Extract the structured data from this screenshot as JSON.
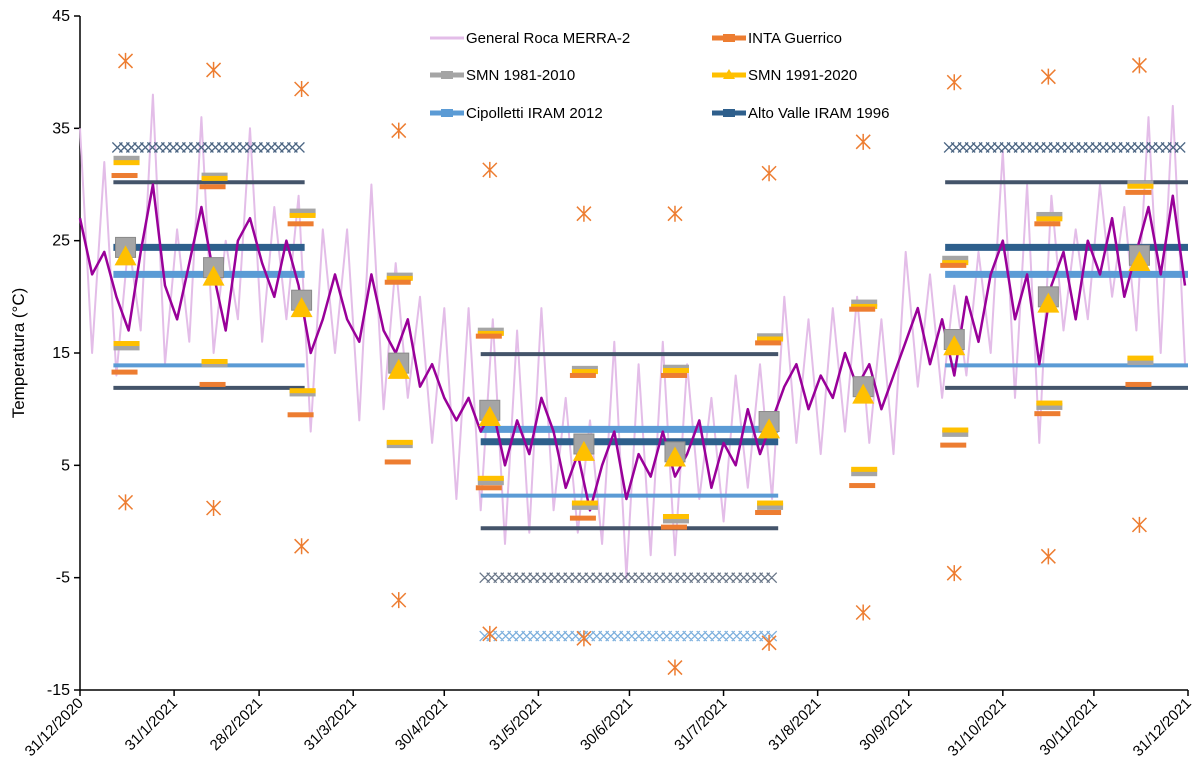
{
  "chart_data": {
    "type": "line",
    "y_label": "Temperatura (°C)",
    "ylim": [
      -15,
      45
    ],
    "yticks": [
      -15,
      -5,
      5,
      15,
      25,
      35,
      45
    ],
    "xlim": [
      0,
      365
    ],
    "xticks": [
      {
        "value": 0,
        "label": "31/12/2020"
      },
      {
        "value": 31,
        "label": "31/1/2021"
      },
      {
        "value": 59,
        "label": "28/2/2021"
      },
      {
        "value": 90,
        "label": "31/3/2021"
      },
      {
        "value": 120,
        "label": "30/4/2021"
      },
      {
        "value": 151,
        "label": "31/5/2021"
      },
      {
        "value": 181,
        "label": "30/6/2021"
      },
      {
        "value": 212,
        "label": "31/7/2021"
      },
      {
        "value": 243,
        "label": "31/8/2021"
      },
      {
        "value": 273,
        "label": "30/9/2021"
      },
      {
        "value": 304,
        "label": "31/10/2021"
      },
      {
        "value": 334,
        "label": "30/11/2021"
      },
      {
        "value": 365,
        "label": "31/12/2021"
      }
    ],
    "x": [
      0,
      4,
      8,
      12,
      16,
      20,
      24,
      28,
      32,
      36,
      40,
      44,
      48,
      52,
      56,
      60,
      64,
      68,
      72,
      76,
      80,
      84,
      88,
      92,
      96,
      100,
      104,
      108,
      112,
      116,
      120,
      124,
      128,
      132,
      136,
      140,
      144,
      148,
      152,
      156,
      160,
      164,
      168,
      172,
      176,
      180,
      184,
      188,
      192,
      196,
      200,
      204,
      208,
      212,
      216,
      220,
      224,
      228,
      232,
      236,
      240,
      244,
      248,
      252,
      256,
      260,
      264,
      268,
      272,
      276,
      280,
      284,
      288,
      292,
      296,
      300,
      304,
      308,
      312,
      316,
      320,
      324,
      328,
      332,
      336,
      340,
      344,
      348,
      352,
      356,
      360,
      364
    ],
    "series": [
      {
        "name": "General Roca MERRA-2",
        "color": "#e3bde8",
        "values": [
          35,
          15,
          32,
          13,
          25,
          17,
          38,
          14,
          26,
          16,
          36,
          15,
          25,
          18,
          35,
          16,
          28,
          18,
          29,
          8,
          26,
          15,
          26,
          9,
          30,
          10,
          23,
          11,
          20,
          7,
          19,
          2,
          19,
          1,
          18,
          -2,
          17,
          -1,
          19,
          1,
          11,
          -1,
          9,
          -2,
          16,
          -5,
          14,
          -3,
          16,
          -3,
          14,
          2,
          11,
          0,
          13,
          3,
          14,
          2,
          20,
          7,
          18,
          6,
          19,
          8,
          20,
          7,
          18,
          6,
          24,
          12,
          22,
          11,
          21,
          13,
          24,
          15,
          33,
          11,
          30,
          7,
          29,
          17,
          26,
          18,
          30,
          20,
          28,
          17,
          36,
          15,
          37,
          14
        ]
      },
      {
        "color": "#990099",
        "values": [
          27,
          22,
          24,
          20,
          17,
          24,
          30,
          21,
          18,
          23,
          28,
          22,
          17,
          25,
          27,
          23,
          20,
          25,
          21,
          15,
          18,
          22,
          18,
          16,
          22,
          17,
          15,
          18,
          12,
          14,
          11,
          9,
          11,
          8,
          10,
          5,
          9,
          6,
          11,
          8,
          3,
          6,
          1,
          5,
          8,
          2,
          6,
          4,
          8,
          4,
          6,
          9,
          3,
          7,
          5,
          10,
          6,
          9,
          12,
          14,
          10,
          13,
          11,
          15,
          12,
          14,
          10,
          13,
          16,
          19,
          14,
          18,
          13,
          20,
          16,
          22,
          25,
          18,
          22,
          14,
          21,
          24,
          18,
          25,
          22,
          27,
          20,
          24,
          28,
          22,
          29,
          21
        ]
      }
    ],
    "monthly": {
      "x": [
        15,
        44,
        73,
        105,
        135,
        166,
        196,
        227,
        258,
        288,
        319,
        349
      ],
      "series": [
        {
          "name": "INTA Guerrico",
          "color": "#ed7d31",
          "high": [
            30.8,
            29.8,
            26.5,
            21.3,
            16.5,
            13.0,
            13.0,
            15.9,
            18.9,
            22.8,
            26.5,
            29.3
          ],
          "low": [
            13.3,
            12.2,
            9.5,
            5.3,
            3.0,
            0.3,
            -0.5,
            0.8,
            3.2,
            6.8,
            9.6,
            12.2
          ],
          "abs_max": [
            41.0,
            40.2,
            38.5,
            34.8,
            31.3,
            27.4,
            27.4,
            31.0,
            33.8,
            39.1,
            39.6,
            40.6
          ],
          "abs_min": [
            1.7,
            1.2,
            -2.2,
            -7.0,
            -10.0,
            -10.4,
            -13.0,
            -10.8,
            -8.1,
            -4.6,
            -3.1,
            -0.3
          ]
        },
        {
          "name": "SMN 1981-2010",
          "color": "#a5a5a5",
          "high": [
            32.2,
            30.7,
            27.5,
            21.8,
            16.9,
            13.5,
            13.6,
            16.4,
            19.4,
            23.3,
            27.2,
            30.0
          ],
          "mean": [
            24.4,
            22.6,
            19.7,
            14.1,
            9.9,
            6.9,
            6.2,
            8.9,
            12.0,
            16.2,
            20.0,
            23.7
          ],
          "low": [
            15.5,
            14.0,
            11.4,
            6.8,
            3.5,
            1.3,
            0.1,
            1.3,
            4.3,
            7.8,
            10.2,
            14.2
          ]
        },
        {
          "name": "SMN 1991-2020",
          "color": "#ffc000",
          "high": [
            31.9,
            30.5,
            27.2,
            21.6,
            16.7,
            13.3,
            13.4,
            16.2,
            19.1,
            23.0,
            26.9,
            29.8
          ],
          "mean": [
            23.6,
            21.8,
            19.0,
            13.5,
            9.3,
            6.2,
            5.7,
            8.2,
            11.3,
            15.6,
            19.4,
            23.1
          ],
          "low": [
            15.8,
            14.2,
            11.6,
            7.0,
            3.8,
            1.6,
            0.4,
            1.6,
            4.6,
            8.1,
            10.5,
            14.5
          ]
        }
      ]
    },
    "seasonal": {
      "periods": [
        [
          11,
          74
        ],
        [
          132,
          230
        ],
        [
          285,
          365
        ]
      ],
      "series": [
        {
          "name": "Cipolletti IRAM 2012",
          "color": "#5b9bd5",
          "mean": [
            22.0,
            8.2,
            22.0
          ],
          "low": [
            13.9,
            2.3,
            13.9
          ],
          "extreme": [
            33.3,
            -10.2,
            33.3
          ]
        },
        {
          "name": "Alto Valle IRAM 1996",
          "color": "#2e5f8c",
          "minmax_color": "#44546a",
          "mean": [
            24.4,
            7.1,
            24.4
          ],
          "high": [
            30.2,
            14.9,
            30.2
          ],
          "low": [
            11.9,
            -0.6,
            11.9
          ],
          "extreme": [
            33.3,
            -5.0,
            33.3
          ]
        }
      ]
    }
  }
}
